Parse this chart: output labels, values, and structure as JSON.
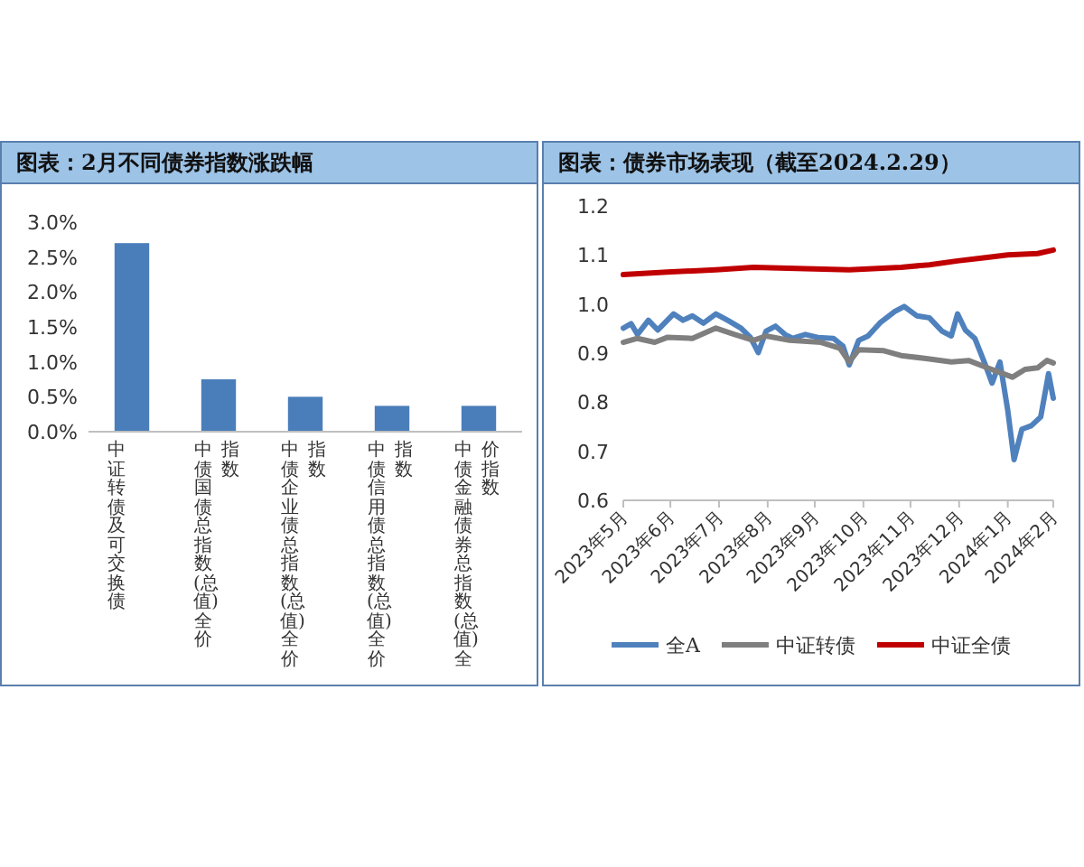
{
  "chart_data": [
    {
      "type": "bar",
      "title": "图表：2月不同债券指数涨跌幅",
      "categories": [
        "中证转债及可交换债",
        "中债国债总指数(总值)全价指数",
        "中债企业债总指数(总值)全价指数",
        "中债信用债总指数(总值)全价指数",
        "中债金融债券总指数(总值)全价指数"
      ],
      "values": [
        2.7,
        0.75,
        0.5,
        0.37,
        0.37
      ],
      "color": "#4a7ebb",
      "ylim": [
        0,
        3
      ],
      "yticks": [
        {
          "value": 0,
          "label": "0.0%"
        },
        {
          "value": 0.5,
          "label": "0.5%"
        },
        {
          "value": 1,
          "label": "1.0%"
        },
        {
          "value": 1.5,
          "label": "1.5%"
        },
        {
          "value": 2,
          "label": "2.0%"
        },
        {
          "value": 2.5,
          "label": "2.5%"
        },
        {
          "value": 3,
          "label": "3.0%"
        }
      ]
    },
    {
      "type": "line",
      "title": "图表：债券市场表现（截至2024.2.29）",
      "legend": "bottom",
      "xlim": [
        "2023-05-31",
        "2024-02-29"
      ],
      "xticks": [
        {
          "value": "2023-05-31",
          "label": "2023年5月"
        },
        {
          "value": "2023-06-30",
          "label": "2023年6月"
        },
        {
          "value": "2023-07-31",
          "label": "2023年7月"
        },
        {
          "value": "2023-08-31",
          "label": "2023年8月"
        },
        {
          "value": "2023-09-30",
          "label": "2023年9月"
        },
        {
          "value": "2023-10-31",
          "label": "2023年10月"
        },
        {
          "value": "2023-11-30",
          "label": "2023年11月"
        },
        {
          "value": "2023-12-31",
          "label": "2023年12月"
        },
        {
          "value": "2024-01-31",
          "label": "2024年1月"
        },
        {
          "value": "2024-02-29",
          "label": "2024年2月"
        }
      ],
      "ylim": [
        0.6,
        1.2
      ],
      "yticks": [
        0.6,
        0.7,
        0.8,
        0.9,
        {
          "value": 1,
          "label": "1.0"
        },
        1.1,
        1.2
      ],
      "series": [
        {
          "name": "全A",
          "color": "#4f81bd",
          "x": [
            "2023-05-31",
            "2023-06-05",
            "2023-06-09",
            "2023-06-16",
            "2023-06-22",
            "2023-07-02",
            "2023-07-08",
            "2023-07-14",
            "2023-07-21",
            "2023-07-29",
            "2023-08-06",
            "2023-08-14",
            "2023-08-20",
            "2023-08-25",
            "2023-08-30",
            "2023-09-05",
            "2023-09-11",
            "2023-09-16",
            "2023-09-24",
            "2023-10-02",
            "2023-10-12",
            "2023-10-18",
            "2023-10-22",
            "2023-10-28",
            "2023-11-03",
            "2023-11-11",
            "2023-11-20",
            "2023-11-26",
            "2023-12-04",
            "2023-12-12",
            "2023-12-20",
            "2023-12-26",
            "2023-12-30",
            "2024-01-04",
            "2024-01-10",
            "2024-01-16",
            "2024-01-21",
            "2024-01-26",
            "2024-01-31",
            "2024-02-04",
            "2024-02-09",
            "2024-02-15",
            "2024-02-21",
            "2024-02-26",
            "2024-02-29"
          ],
          "values": [
            0.951,
            0.96,
            0.938,
            0.967,
            0.947,
            0.98,
            0.967,
            0.976,
            0.961,
            0.98,
            0.966,
            0.951,
            0.932,
            0.901,
            0.945,
            0.955,
            0.938,
            0.93,
            0.938,
            0.932,
            0.93,
            0.914,
            0.876,
            0.926,
            0.935,
            0.963,
            0.985,
            0.995,
            0.976,
            0.972,
            0.945,
            0.935,
            0.98,
            0.947,
            0.93,
            0.882,
            0.839,
            0.882,
            0.783,
            0.683,
            0.745,
            0.752,
            0.77,
            0.858,
            0.808
          ]
        },
        {
          "name": "中证转债",
          "color": "#7f7f7f",
          "x": [
            "2023-05-31",
            "2023-06-09",
            "2023-06-20",
            "2023-06-28",
            "2023-07-14",
            "2023-07-29",
            "2023-08-10",
            "2023-08-22",
            "2023-08-30",
            "2023-09-14",
            "2023-10-04",
            "2023-10-16",
            "2023-10-22",
            "2023-10-28",
            "2023-11-13",
            "2023-11-24",
            "2023-12-10",
            "2023-12-26",
            "2024-01-06",
            "2024-01-18",
            "2024-02-03",
            "2024-02-11",
            "2024-02-19",
            "2024-02-25",
            "2024-02-29"
          ],
          "values": [
            0.922,
            0.93,
            0.922,
            0.932,
            0.93,
            0.951,
            0.938,
            0.926,
            0.935,
            0.926,
            0.922,
            0.91,
            0.882,
            0.907,
            0.905,
            0.895,
            0.889,
            0.882,
            0.885,
            0.87,
            0.851,
            0.867,
            0.87,
            0.885,
            0.88
          ]
        },
        {
          "name": "中证全债",
          "color": "#c00000",
          "x": [
            "2023-05-31",
            "2023-06-28",
            "2023-07-29",
            "2023-08-22",
            "2023-09-24",
            "2023-10-22",
            "2023-11-24",
            "2023-12-12",
            "2023-12-30",
            "2024-01-18",
            "2024-01-31",
            "2024-02-19",
            "2024-02-29"
          ],
          "values": [
            1.06,
            1.065,
            1.07,
            1.075,
            1.072,
            1.07,
            1.075,
            1.08,
            1.088,
            1.095,
            1.1,
            1.103,
            1.11
          ]
        }
      ]
    }
  ]
}
